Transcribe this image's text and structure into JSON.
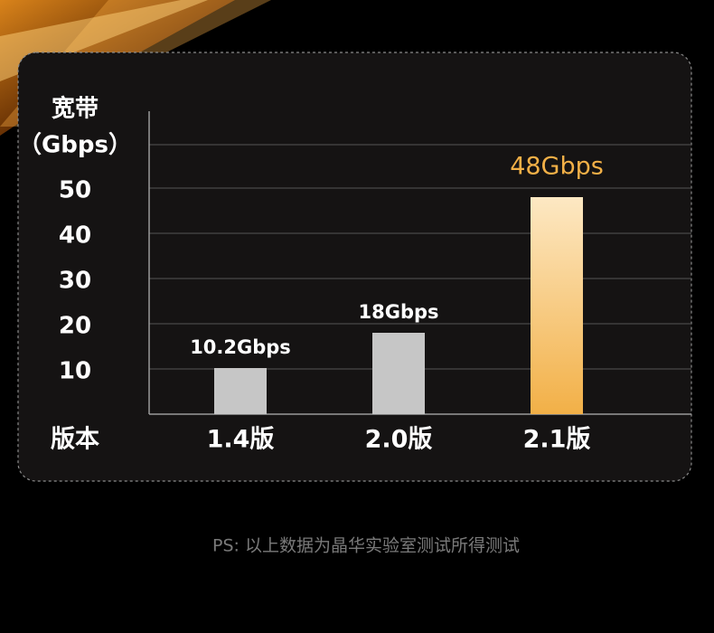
{
  "chart_data": {
    "type": "bar",
    "y_label_lines": [
      "宽带",
      "（Gbps）"
    ],
    "x_label": "版本",
    "categories": [
      "1.4版",
      "2.0版",
      "2.1版"
    ],
    "values": [
      10.2,
      18,
      48
    ],
    "value_labels": [
      "10.2Gbps",
      "18Gbps",
      "48Gbps"
    ],
    "colors": [
      "#c6c6c6",
      "#c6c6c6",
      "#f2b047"
    ],
    "ylim": [
      0,
      67
    ],
    "yticks": [
      10,
      20,
      30,
      40,
      50
    ],
    "grid": true,
    "note": "PS: 以上数据为晶华实验室测试所得测试"
  }
}
